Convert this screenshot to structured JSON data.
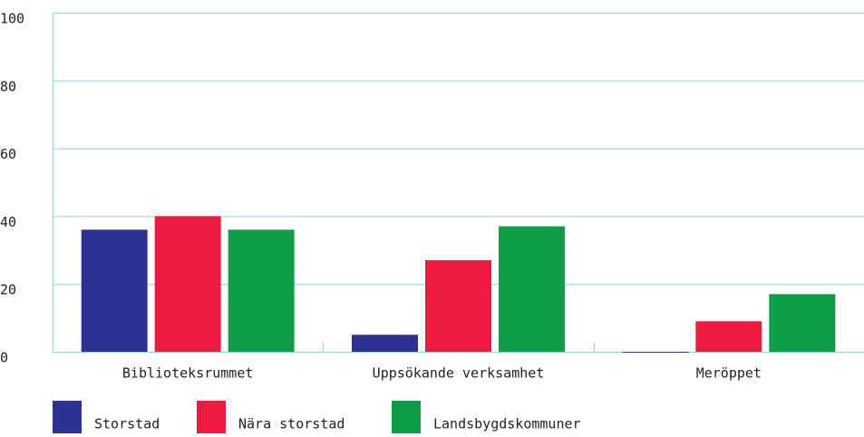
{
  "chart_data": {
    "type": "bar",
    "categories": [
      "Biblioteksrummet",
      "Uppsökande verksamhet",
      "Meröppet"
    ],
    "series": [
      {
        "name": "Storstad",
        "color": "#2e3192",
        "values": [
          36,
          5,
          0
        ]
      },
      {
        "name": "Nära storstad",
        "color": "#ef1a3f",
        "values": [
          40,
          27,
          9
        ]
      },
      {
        "name": "Landsbygdskommuner",
        "color": "#0f9d48",
        "values": [
          36,
          37,
          17
        ]
      }
    ],
    "ylim": [
      0,
      100
    ],
    "yticks": [
      0,
      20,
      40,
      60,
      80,
      100
    ],
    "grid": true,
    "legend": "bottom"
  }
}
